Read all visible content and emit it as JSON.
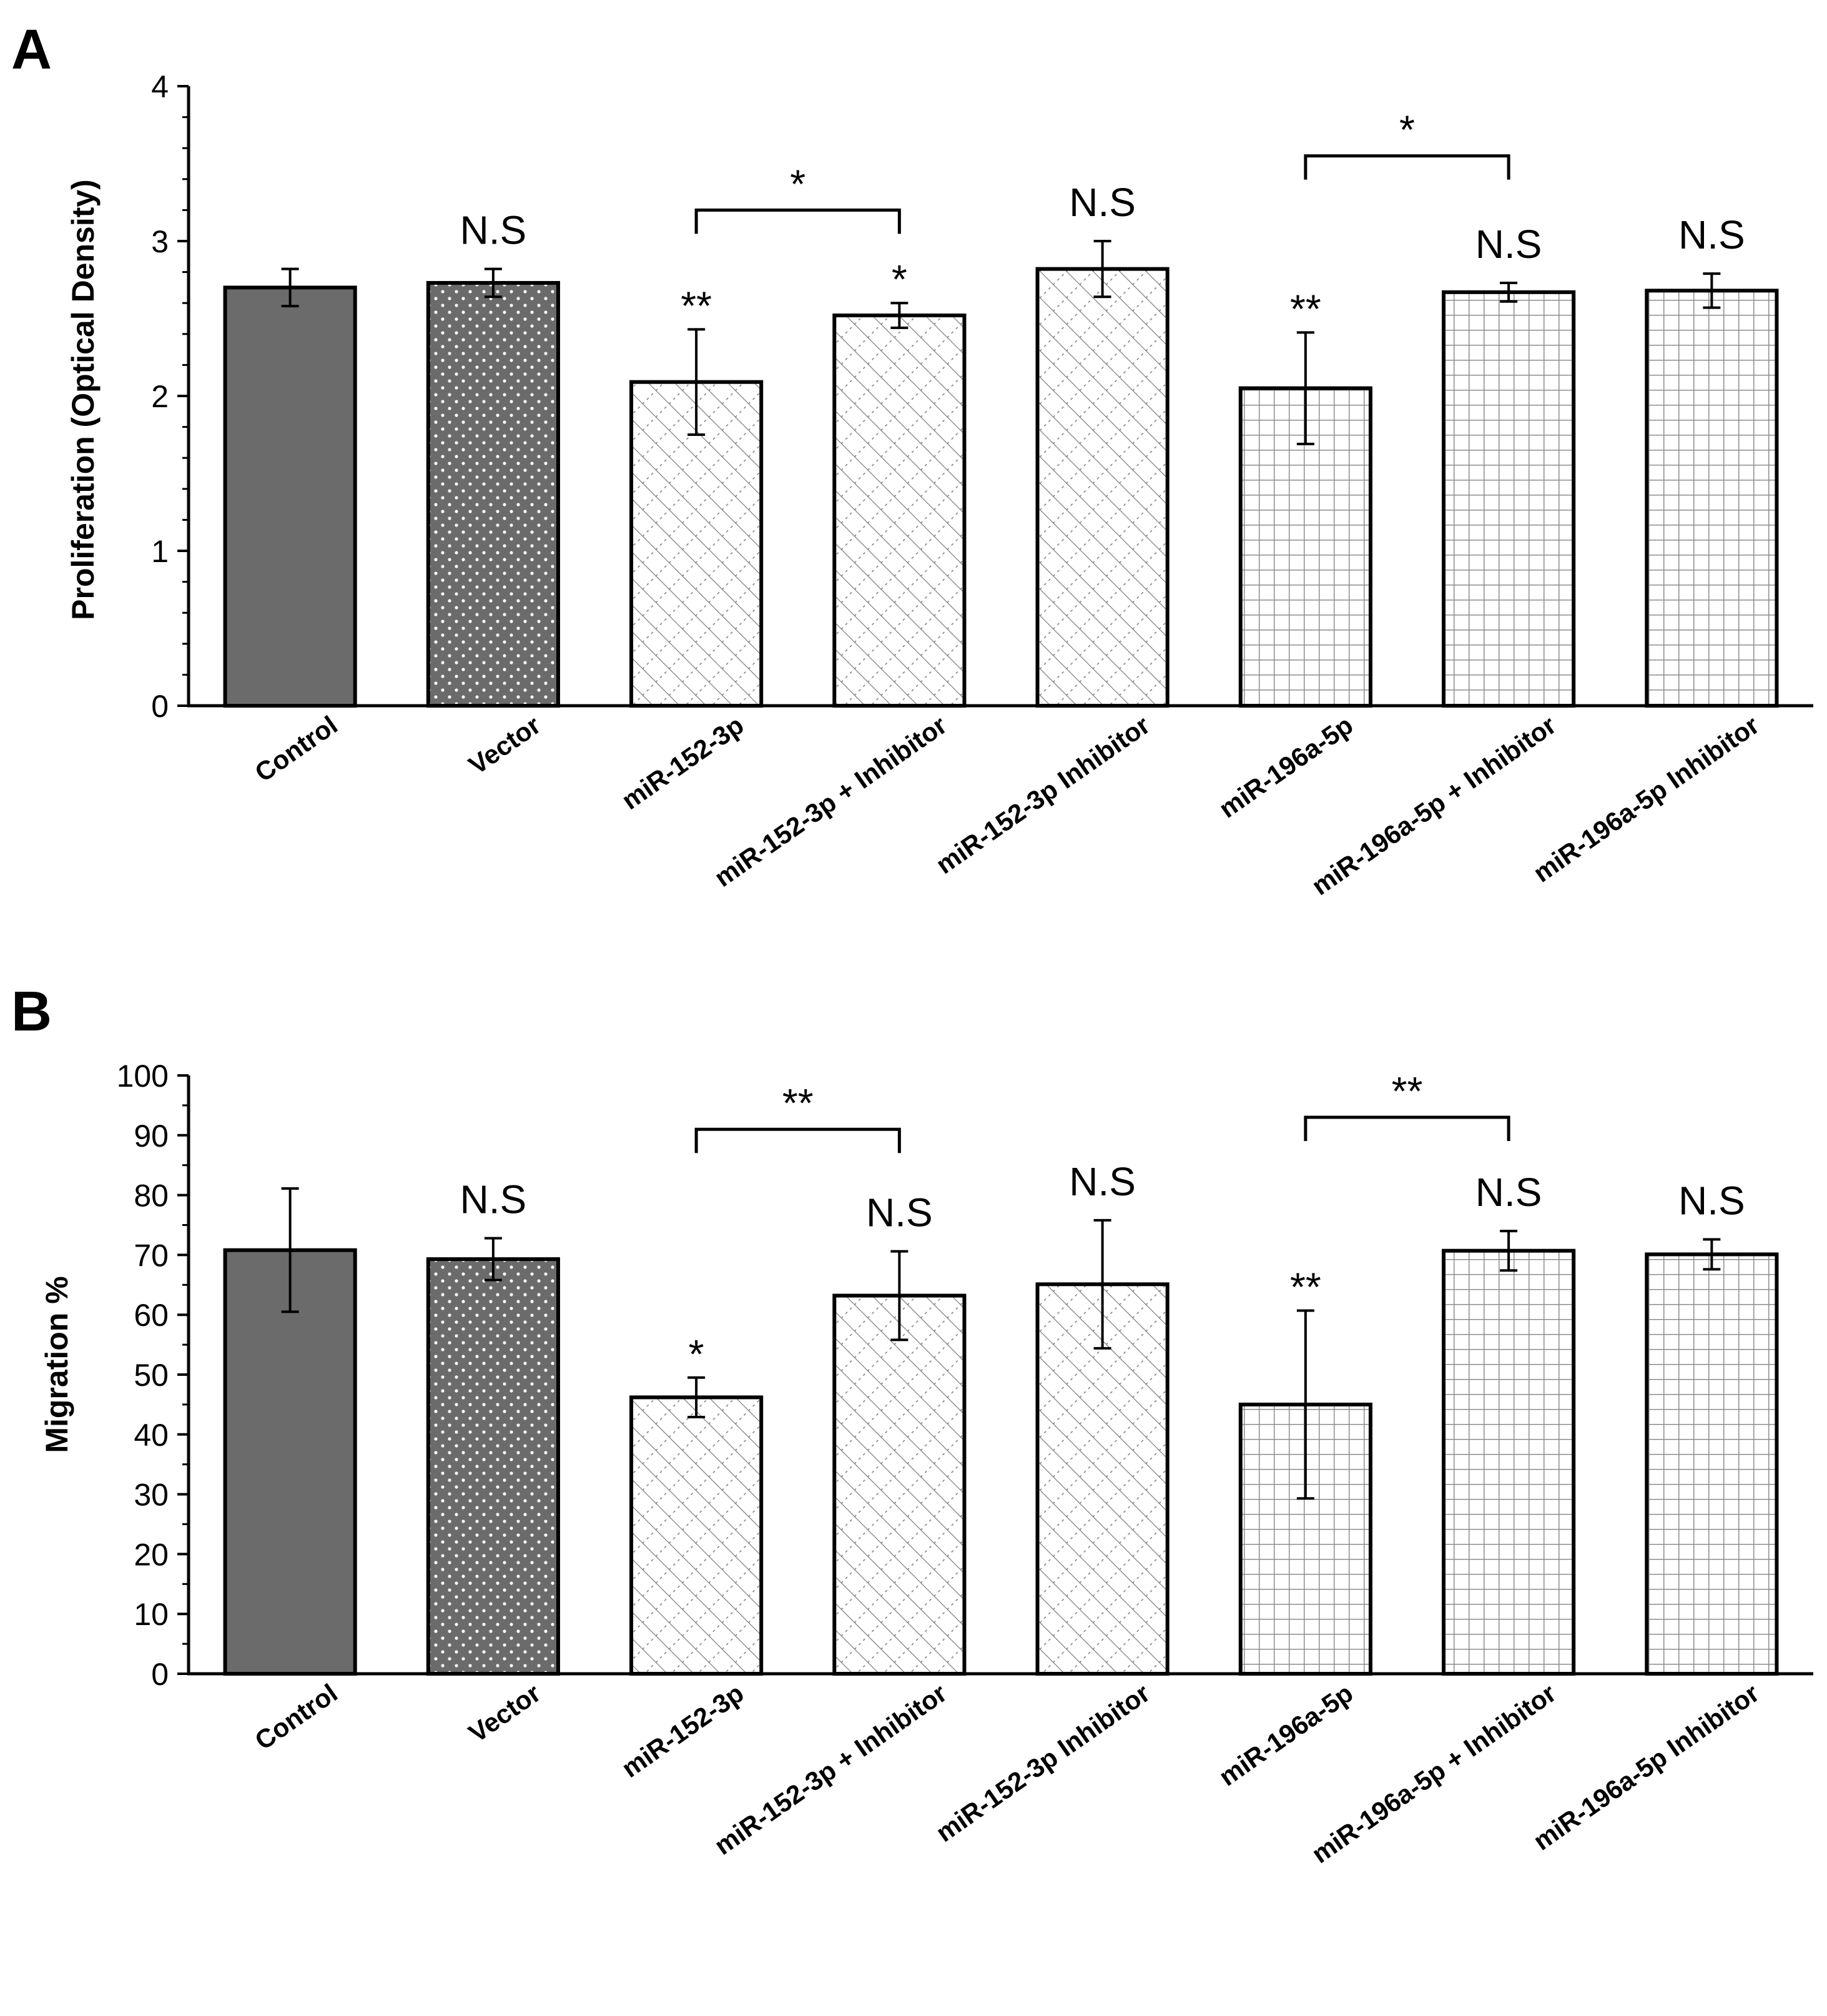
{
  "colors": {
    "dark_bar": "#6b6b6b",
    "hatch_line": "#7a7a7a",
    "grid_line": "#8c8c8c",
    "outline": "#000000"
  },
  "categories": [
    "Control",
    "Vector",
    "miR-152-3p",
    "miR-152-3p + Inhibitor",
    "miR-152-3p Inhibitor",
    "miR-196a-5p",
    "miR-196a-5p + Inhibitor",
    "miR-196a-5p Inhibitor"
  ],
  "bar_patterns": [
    "solid-dark",
    "dotted-dark",
    "diagonal-hatch",
    "diagonal-hatch",
    "diagonal-hatch",
    "grid",
    "grid",
    "grid"
  ],
  "chart_data": [
    {
      "panel": "A",
      "type": "bar",
      "ylabel": "Proliferation (Optical Density)",
      "ylim": [
        0,
        4
      ],
      "yticks": [
        "0",
        "1",
        "2",
        "3",
        "4"
      ],
      "values": [
        2.7,
        2.73,
        2.09,
        2.52,
        2.82,
        2.05,
        2.67,
        2.68
      ],
      "errors": [
        0.12,
        0.09,
        0.34,
        0.08,
        0.18,
        0.36,
        0.06,
        0.11
      ],
      "annotations": [
        "",
        "N.S",
        "**",
        "*",
        "N.S",
        "**",
        "N.S",
        "N.S"
      ],
      "brackets": [
        {
          "from": 2,
          "to": 3,
          "label": "*",
          "level": 3.2
        },
        {
          "from": 5,
          "to": 6,
          "label": "*",
          "level": 3.55
        }
      ]
    },
    {
      "panel": "B",
      "type": "bar",
      "ylabel": "Migration %",
      "ylim": [
        0,
        100
      ],
      "yticks": [
        "0",
        "10",
        "20",
        "30",
        "40",
        "50",
        "60",
        "70",
        "80",
        "90",
        "100"
      ],
      "values": [
        70.8,
        69.3,
        46.2,
        63.2,
        65.1,
        45.0,
        70.7,
        70.1
      ],
      "errors": [
        10.3,
        3.5,
        3.3,
        7.4,
        10.7,
        15.7,
        3.3,
        2.5
      ],
      "annotations": [
        "",
        "N.S",
        "*",
        "N.S",
        "N.S",
        "**",
        "N.S",
        "N.S"
      ],
      "brackets": [
        {
          "from": 2,
          "to": 3,
          "label": "**",
          "level": 91
        },
        {
          "from": 5,
          "to": 6,
          "label": "**",
          "level": 93
        }
      ]
    }
  ]
}
